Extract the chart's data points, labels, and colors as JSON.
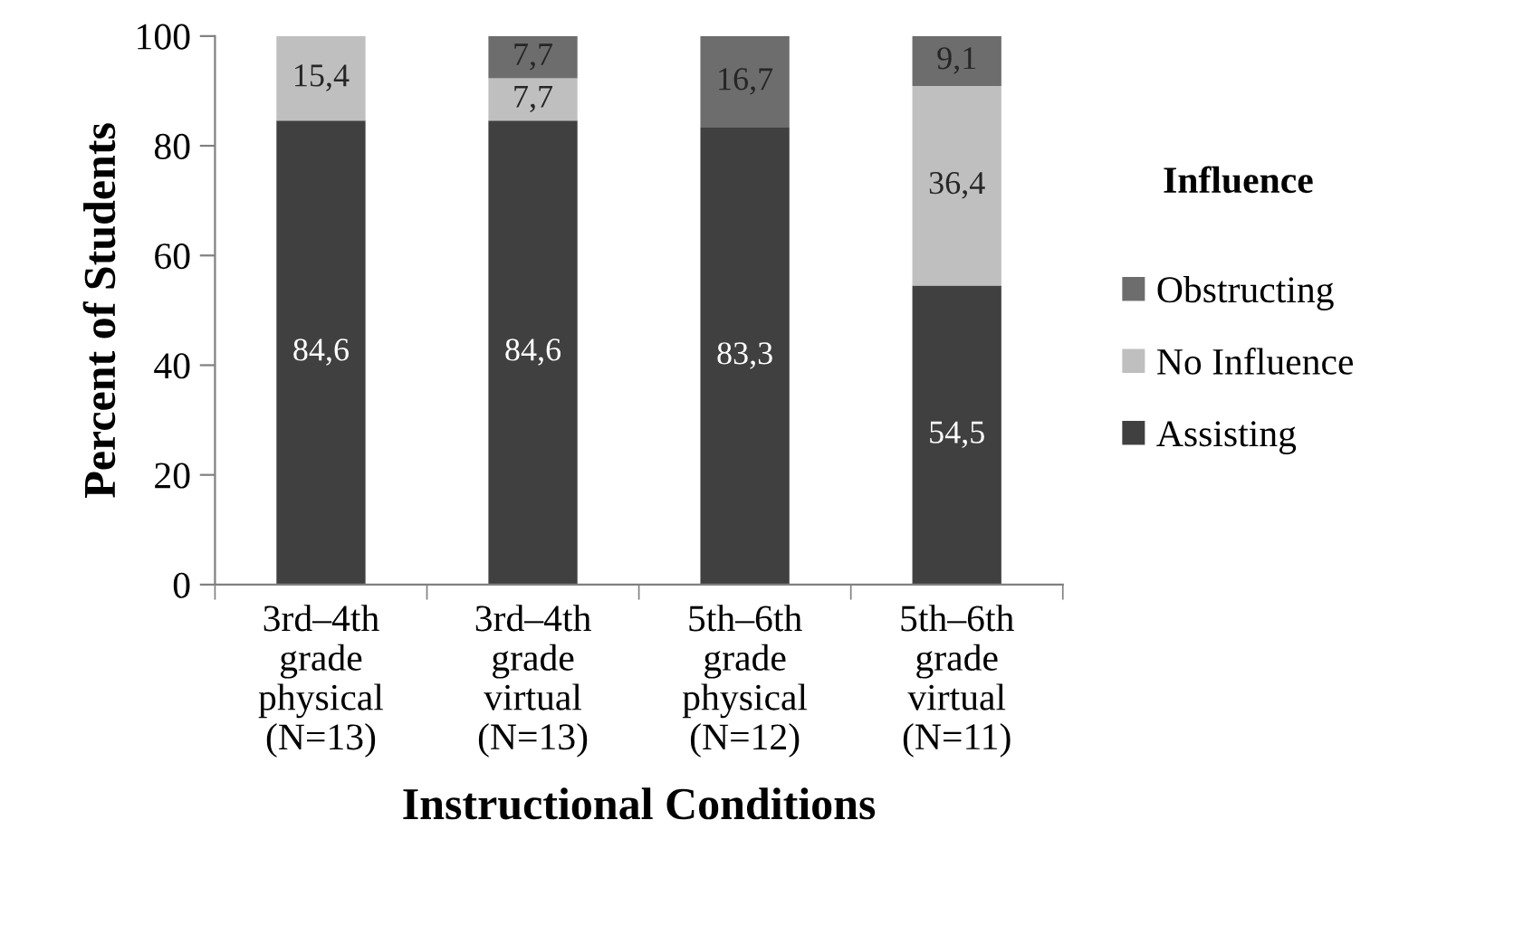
{
  "chart_data": {
    "type": "bar",
    "stacked": true,
    "xlabel": "Instructional Conditions",
    "ylabel": "Percent of Students",
    "legend_title": "Influence",
    "legend": "right",
    "categories": [
      "3rd–4th\ngrade\nphysical\n(N=13)",
      "3rd–4th\ngrade\nvirtual\n(N=13)",
      "5th–6th\ngrade\nphysical\n(N=12)",
      "5th–6th\ngrade\nvirtual\n(N=11)"
    ],
    "series": [
      {
        "name": "Assisting",
        "color": "#404040",
        "values": [
          84.6,
          84.6,
          83.3,
          54.5
        ],
        "value_labels": [
          "84,6",
          "84,6",
          "83,3",
          "54,5"
        ]
      },
      {
        "name": "No Influence",
        "color": "#bfbfbf",
        "values": [
          15.4,
          7.7,
          0,
          36.4
        ],
        "value_labels": [
          "15,4",
          "7,7",
          null,
          "36,4"
        ]
      },
      {
        "name": "Obstructing",
        "color": "#6d6d6d",
        "values": [
          0,
          7.7,
          16.7,
          9.1
        ],
        "value_labels": [
          null,
          "7,7",
          "16,7",
          "9,1"
        ]
      }
    ],
    "ylim": [
      0,
      100
    ],
    "yticks": [
      0,
      20,
      40,
      60,
      80,
      100
    ],
    "grid": false
  }
}
